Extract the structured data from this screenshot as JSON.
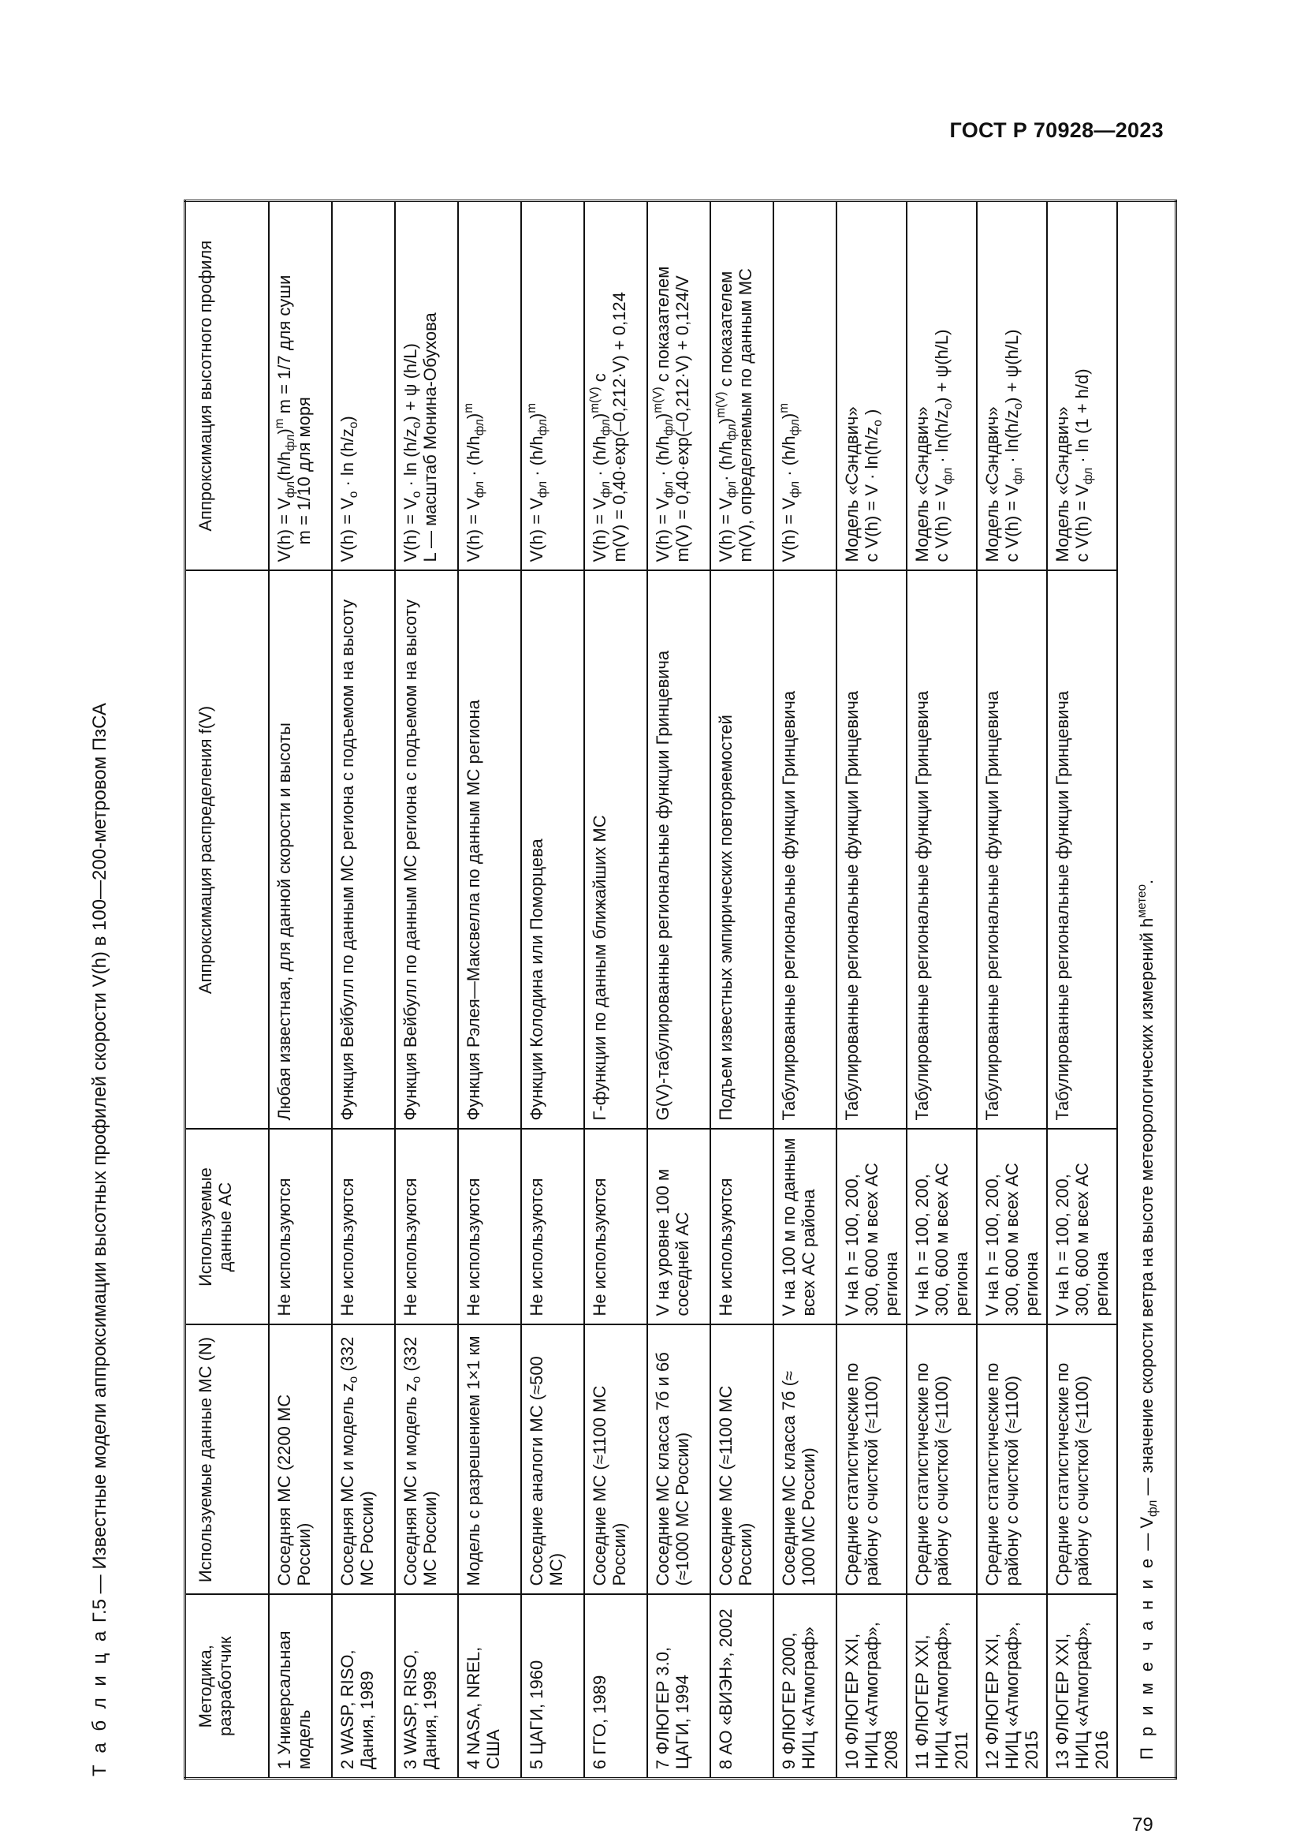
{
  "header": {
    "standard": "ГОСТ Р 70928—2023"
  },
  "page_number": "79",
  "table": {
    "caption_label": "Т а б л и ц а",
    "caption_text": " Г.5 — Известные модели аппроксимации высотных профилей скорости V(h) в 100—200-метровом ПзСА",
    "columns": [
      "Методика, разработчик",
      "Используемые данные МС (N)",
      "Используемые данные АС",
      "Аппроксимация распределения f(V)",
      "Аппроксимация высотного профиля"
    ],
    "rows": [
      {
        "method": "1 Универсальная модель",
        "ms": "Соседняя МС (2200 МС России)",
        "as": "Не используются",
        "dist": "Любая известная, для данной скорости и высоты",
        "profile": [
          "V(h) = V_{фл}(h/h_{фл})^{m} m = 1/7 для суши",
          "m = 1/10 для моря"
        ]
      },
      {
        "method": "2 WASP, RISO, Дания, 1989",
        "ms": "Соседняя МС и модель z_{o} (332 МС России)",
        "as": "Не используются",
        "dist": "Функция Вейбулл по данным МС региона с подъемом на высоту",
        "profile": [
          "V(h) = V_{o} · ln (h/z_{o})"
        ]
      },
      {
        "method": "3 WASP, RISO, Дания, 1998",
        "ms": "Соседняя МС и модель z_{o} (332 МС России)",
        "as": "Не используются",
        "dist": "Функция Вейбулл по данным МС региона с подъемом на высоту",
        "profile": [
          "V(h) = V_{o} · ln (h/z_{o}) + ψ (h/L)",
          "L — масштаб Монина-Обухова"
        ]
      },
      {
        "method": "4 NASA, NREL, США",
        "ms": "Модель с разрешением 1×1 км",
        "as": "Не используются",
        "dist": "Функция Рэлея—Максвелла по данным МС региона",
        "profile": [
          "V(h) = V_{фл} · (h/h_{фл})^{m}"
        ]
      },
      {
        "method": "5 ЦАГИ, 1960",
        "ms": "Соседние аналоги МС (≈500 МС)",
        "as": "Не используются",
        "dist": "Функции Колодина или Поморцева",
        "profile": [
          "V(h) = V_{фл} · (h/h_{фл})^{m}"
        ]
      },
      {
        "method": "6 ГГО, 1989",
        "ms": "Соседние МС (≈1100 МС России)",
        "as": "Не используются",
        "dist": "Г-функции по данным ближайших МС",
        "profile": [
          "V(h) = V_{фл} · (h/h_{фл})^{m(V)} с",
          "m(V) = 0,40·exp(–0,212·V) + 0,124"
        ]
      },
      {
        "method": "7 ФЛЮГЕР 3.0, ЦАГИ, 1994",
        "ms": "Соседние МС класса 7б и 6б (≈1000 МС России)",
        "as": "V на уровне 100 м соседней АС",
        "dist": "G(V)-табулированные региональные функции Гринцевича",
        "profile": [
          "V(h) = V_{фл} · (h/h_{фл})^{m(V)} с показателем",
          "m(V) = 0,40·exp(–0,212·V) + 0,124/V"
        ]
      },
      {
        "method": "8 АО «ВИЭН», 2002",
        "ms": "Соседние МС (≈1100 МС России)",
        "as": "Не используются",
        "dist": "Подъем известных эмпирических повторяемостей",
        "profile": [
          "V(h) = V_{фл}· (h/h_{фл})^{m(V)} с показателем",
          "m(V), определяемым по данным МС"
        ]
      },
      {
        "method": "9 ФЛЮГЕР 2000, НИЦ «Атмограф»",
        "ms": "Соседние МС класса 7б (≈ 1000 МС России)",
        "as": "V на 100 м по данным всех АС района",
        "dist": "Табулированные региональные функции Гринцевича",
        "profile": [
          "V(h) = V_{фл} · (h/h_{фл})^{m}"
        ]
      },
      {
        "method": "10 ФЛЮГЕР XXI, НИЦ «Атмограф», 2008",
        "ms": "Средние статистические по району с очисткой (≈1100)",
        "as": "V на h = 100, 200, 300, 600 м всех АС региона",
        "dist": "Табулированные региональные функции Гринцевича",
        "profile": [
          "Модель «Сэндвич»",
          "с V(h) = V · ln(h/z_{o} )"
        ]
      },
      {
        "method": "11 ФЛЮГЕР XXI, НИЦ «Атмограф», 2011",
        "ms": "Средние статистические по району с очисткой (≈1100)",
        "as": "V на h = 100, 200, 300, 600 м всех АС региона",
        "dist": "Табулированные региональные функции Гринцевича",
        "profile": [
          "Модель «Сэндвич»",
          "с V(h) = V_{фл} · ln(h/z_{o}) + ψ(h/L)"
        ]
      },
      {
        "method": "12 ФЛЮГЕР XXI, НИЦ «Атмограф», 2015",
        "ms": "Средние статистические по району с очисткой (≈1100)",
        "as": "V на h = 100, 200, 300, 600 м всех АС региона",
        "dist": "Табулированные региональные функции Гринцевича",
        "profile": [
          "Модель «Сэндвич»",
          "с V(h) = V_{фл} · ln(h/z_{o}) + ψ(h/L)"
        ]
      },
      {
        "method": "13 ФЛЮГЕР XXI, НИЦ «Атмограф», 2016",
        "ms": "Средние статистические по району с очисткой (≈1100)",
        "as": "V на h = 100, 200, 300, 600 м всех АС региона",
        "dist": "Табулированные региональные функции Гринцевича",
        "profile": [
          "Модель «Сэндвич»",
          "с V(h) = V_{фл} · ln (1 + h/d)"
        ]
      }
    ],
    "note_label": "П р и м е ч а н и е",
    "note_text": " — V_{фл} — значение скорости ветра на высоте метеорологических измерений h^{метео}."
  }
}
